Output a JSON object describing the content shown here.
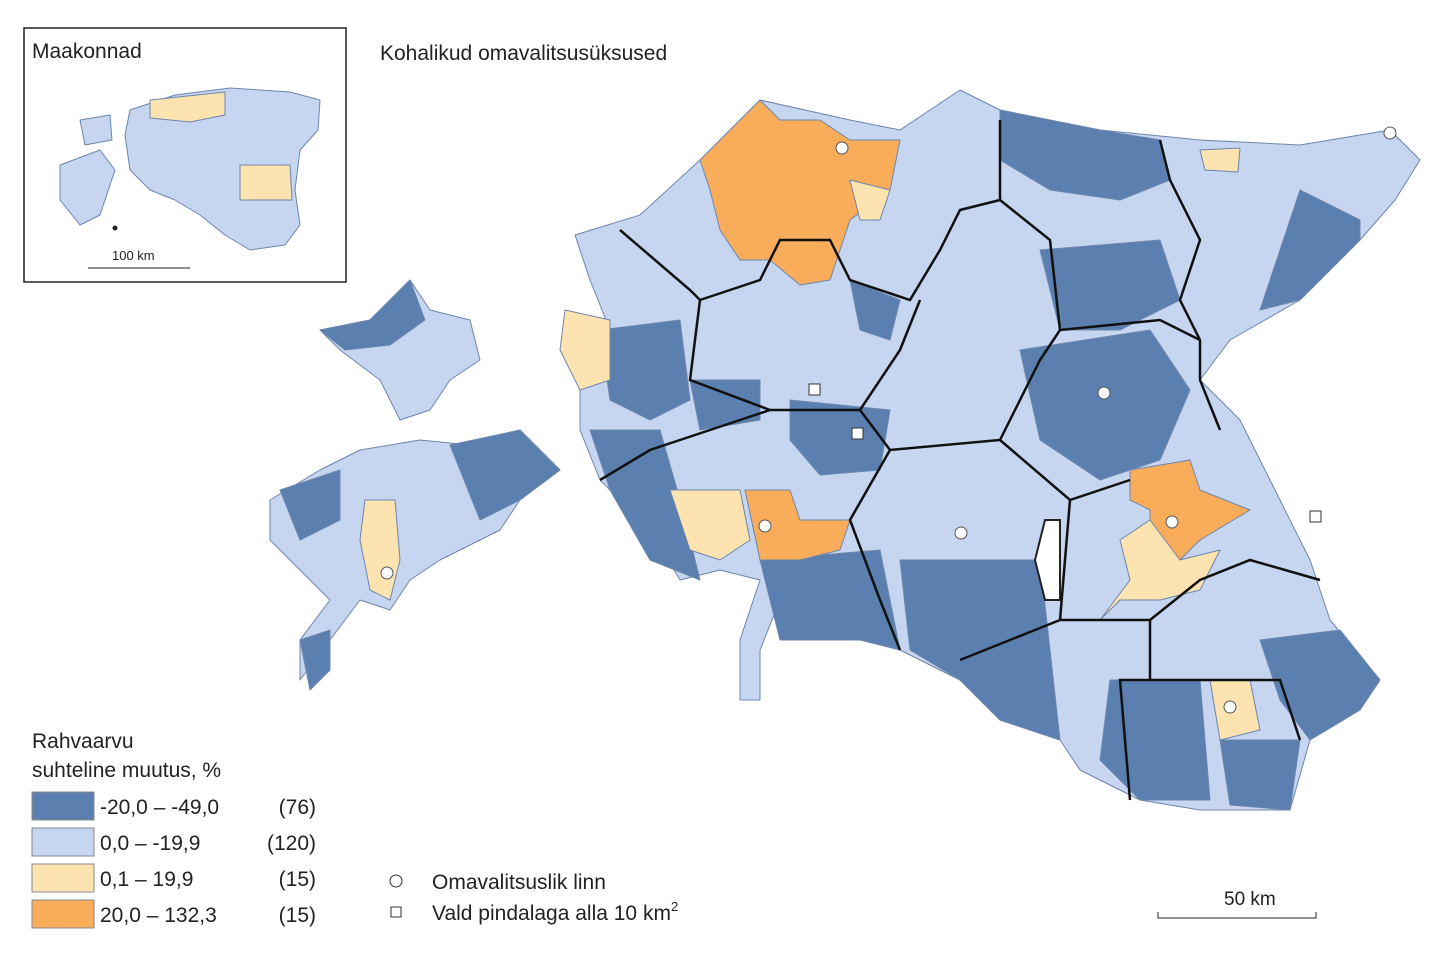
{
  "inset": {
    "title": "Maakonnad",
    "scale": "100 km"
  },
  "map": {
    "title": "Kohalikud omavalitsusüksused",
    "scale": "50 km"
  },
  "legend": {
    "title": [
      "Rahvaarvu",
      "suhteline muutus, %"
    ],
    "classes": [
      {
        "range": "-20,0 – -49,0",
        "count": "(76)",
        "color": "#5b80b0"
      },
      {
        "range": "0,0 – -19,9",
        "count": "(120)",
        "color": "#c6d5f0"
      },
      {
        "range": "0,1 – 19,9",
        "count": "(15)",
        "color": "#fde3b0"
      },
      {
        "range": "20,0 – 132,3",
        "count": "(15)",
        "color": "#f9ad5b"
      }
    ],
    "symbols": [
      {
        "label": "Omavalitsuslik linn"
      },
      {
        "label": "Vald pindalaga alla 10 km",
        "sup": "2"
      }
    ]
  }
}
